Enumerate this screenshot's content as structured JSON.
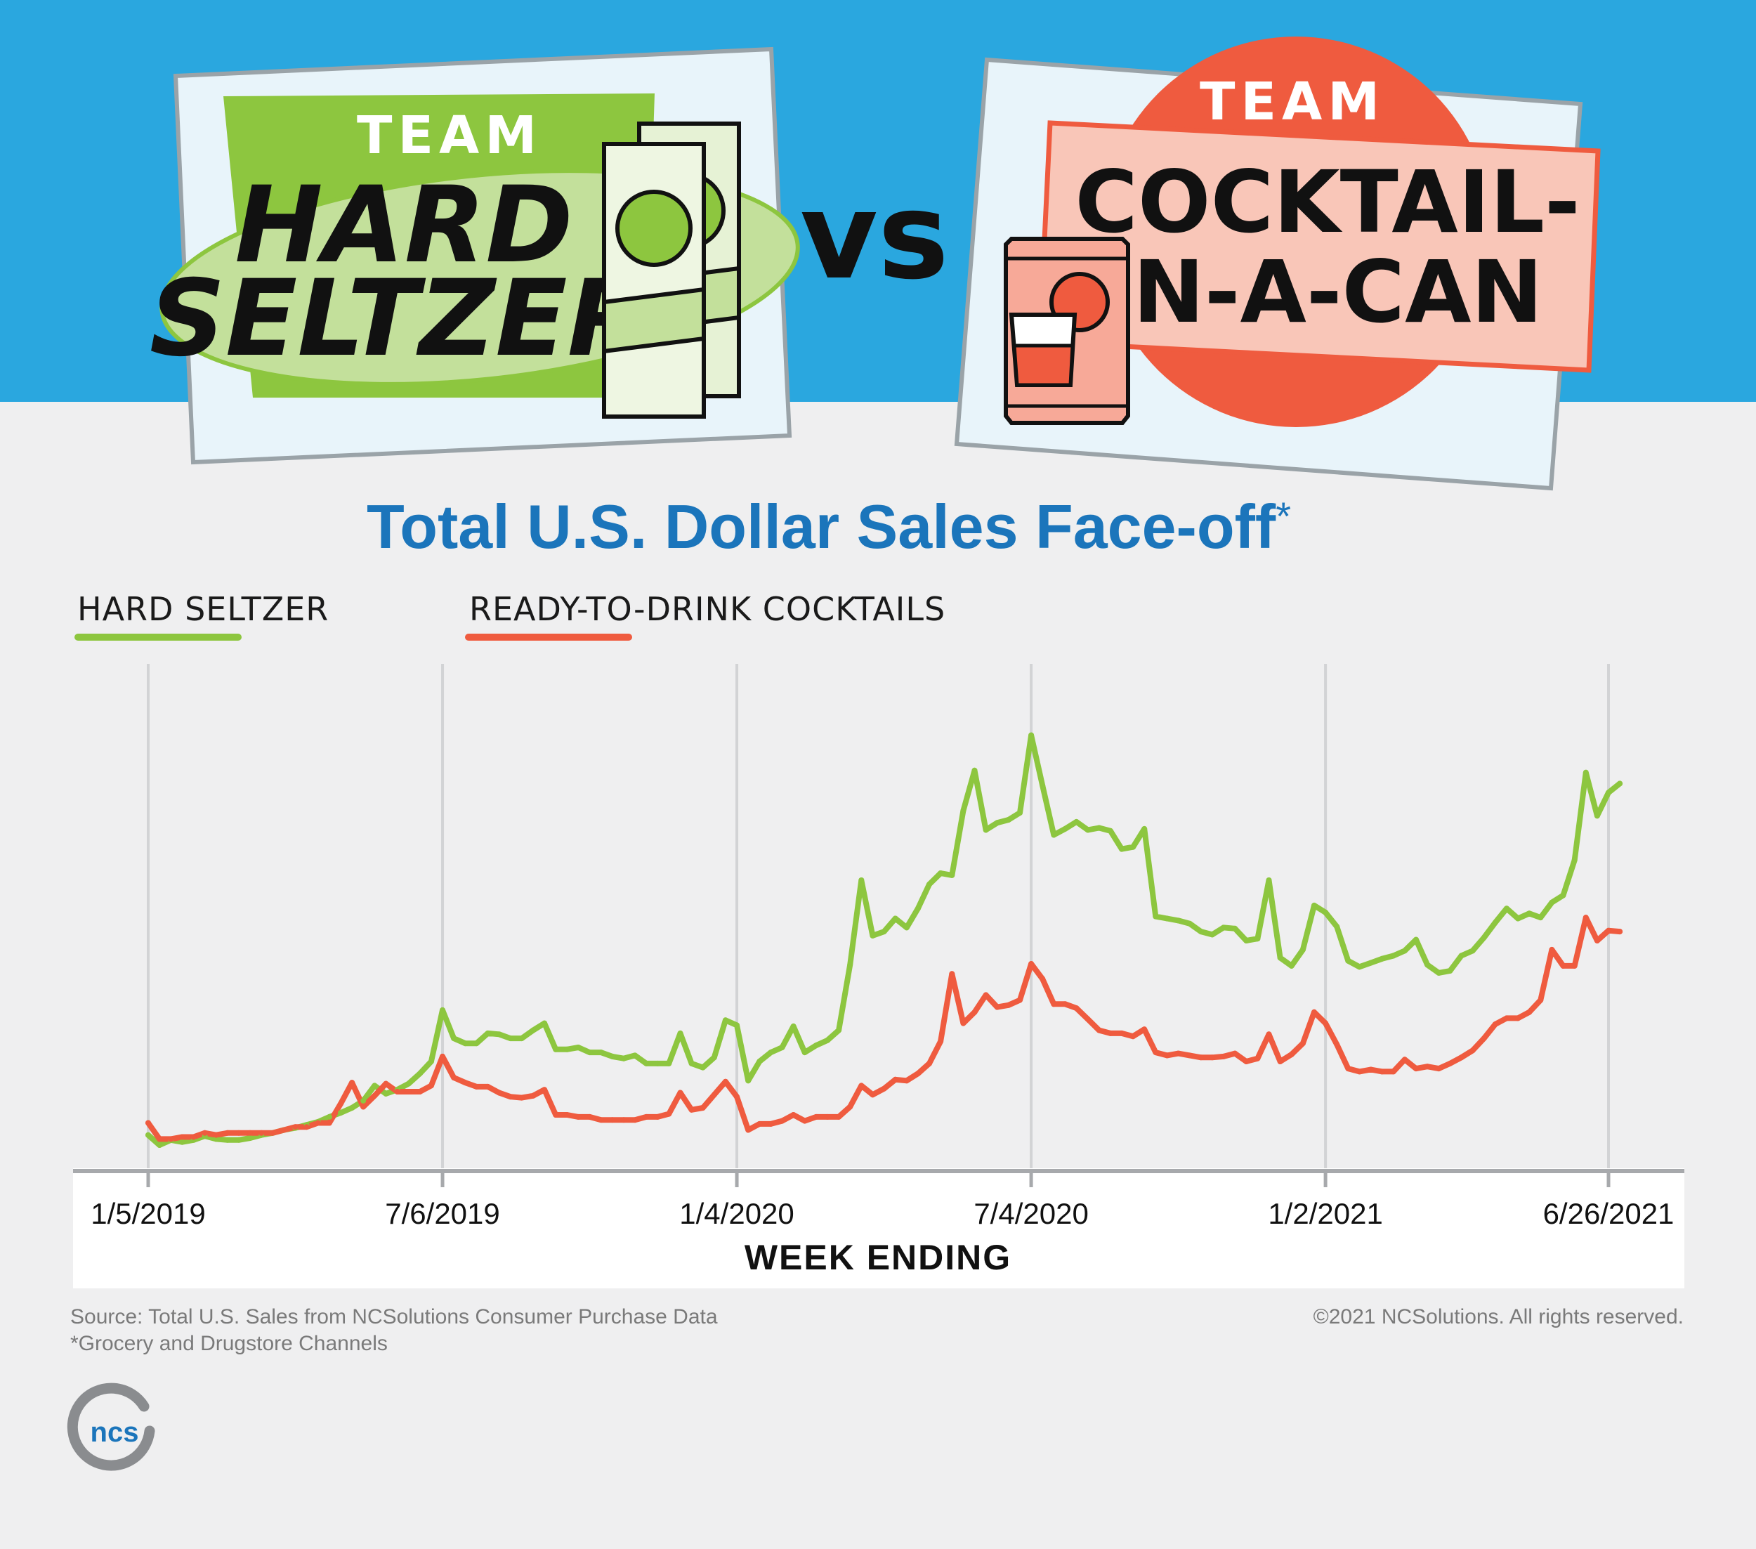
{
  "header": {
    "team_word": "TEAM",
    "left_team_line1": "HARD",
    "left_team_line2": "SELTZER",
    "versus": "VS",
    "right_team_line1": "COCKTAIL-",
    "right_team_line2": "IN-A-CAN"
  },
  "footer": {
    "source": "Source: Total U.S. Sales from NCSolutions Consumer Purchase Data",
    "note": "*Grocery and Drugstore Channels",
    "copyright": "©2021 NCSolutions. All rights reserved.",
    "logo_text": "ncs"
  },
  "colors": {
    "sky": "#2aa7df",
    "hard_seltzer": "#8dc63f",
    "cocktails": "#ef5b3f",
    "title": "#1b75bb"
  },
  "chart_data": {
    "type": "line",
    "title": "Total U.S. Dollar Sales Face-off",
    "title_mark": "*",
    "xlabel": "WEEK ENDING",
    "ylabel": "",
    "y_axis_shown": false,
    "grid": "vertical",
    "legend_position": "top-left",
    "x_ticks": [
      "1/5/2019",
      "7/6/2019",
      "1/4/2020",
      "7/4/2020",
      "1/2/2021",
      "6/26/2021"
    ],
    "x_range": [
      "1/5/2019",
      "6/26/2021"
    ],
    "ylim": [
      0,
      45
    ],
    "series": [
      {
        "name": "HARD SELTZER",
        "color": "#8dc63f",
        "points": [
          [
            "1/5/2019",
            1.0
          ],
          [
            "1/12/2019",
            0
          ],
          [
            "1/19/2019",
            0.5
          ],
          [
            "1/26/2019",
            0.3
          ],
          [
            "2/2/2019",
            0.5
          ],
          [
            "2/9/2019",
            0.9
          ],
          [
            "2/16/2019",
            0.6
          ],
          [
            "2/23/2019",
            0.5
          ],
          [
            "3/2/2019",
            0.5
          ],
          [
            "3/9/2019",
            0.7
          ],
          [
            "3/16/2019",
            1.0
          ],
          [
            "3/23/2019",
            1.2
          ],
          [
            "3/30/2019",
            1.5
          ],
          [
            "4/6/2019",
            1.7
          ],
          [
            "4/13/2019",
            2.0
          ],
          [
            "4/20/2019",
            2.3
          ],
          [
            "4/27/2019",
            2.8
          ],
          [
            "5/4/2019",
            3.2
          ],
          [
            "5/11/2019",
            3.7
          ],
          [
            "5/18/2019",
            4.4
          ],
          [
            "5/25/2019",
            5.9
          ],
          [
            "6/1/2019",
            5.1
          ],
          [
            "6/8/2019",
            5.5
          ],
          [
            "6/15/2019",
            6.1
          ],
          [
            "6/22/2019",
            7.1
          ],
          [
            "6/29/2019",
            8.3
          ],
          [
            "7/6/2019",
            13.4
          ],
          [
            "7/13/2019",
            10.6
          ],
          [
            "7/20/2019",
            10.1
          ],
          [
            "7/27/2019",
            10.1
          ],
          [
            "8/3/2019",
            11.1
          ],
          [
            "8/10/2019",
            11.0
          ],
          [
            "8/17/2019",
            10.6
          ],
          [
            "8/24/2019",
            10.6
          ],
          [
            "8/31/2019",
            11.4
          ],
          [
            "9/7/2019",
            12.1
          ],
          [
            "9/14/2019",
            9.5
          ],
          [
            "9/21/2019",
            9.5
          ],
          [
            "9/28/2019",
            9.7
          ],
          [
            "10/5/2019",
            9.2
          ],
          [
            "10/12/2019",
            9.2
          ],
          [
            "10/19/2019",
            8.8
          ],
          [
            "10/26/2019",
            8.6
          ],
          [
            "11/2/2019",
            8.9
          ],
          [
            "11/9/2019",
            8.1
          ],
          [
            "11/16/2019",
            8.1
          ],
          [
            "11/23/2019",
            8.1
          ],
          [
            "11/30/2019",
            11.1
          ],
          [
            "12/7/2019",
            8.1
          ],
          [
            "12/14/2019",
            7.7
          ],
          [
            "12/21/2019",
            8.7
          ],
          [
            "12/28/2019",
            12.4
          ],
          [
            "1/4/2020",
            11.9
          ],
          [
            "1/11/2020",
            6.4
          ],
          [
            "1/18/2020",
            8.3
          ],
          [
            "1/25/2020",
            9.2
          ],
          [
            "2/1/2020",
            9.7
          ],
          [
            "2/8/2020",
            11.8
          ],
          [
            "2/15/2020",
            9.2
          ],
          [
            "2/22/2020",
            9.9
          ],
          [
            "2/29/2020",
            10.4
          ],
          [
            "3/7/2020",
            11.4
          ],
          [
            "3/14/2020",
            17.9
          ],
          [
            "3/21/2020",
            26.3
          ],
          [
            "3/28/2020",
            20.8
          ],
          [
            "4/4/2020",
            21.2
          ],
          [
            "4/11/2020",
            22.5
          ],
          [
            "4/18/2020",
            21.6
          ],
          [
            "4/25/2020",
            23.5
          ],
          [
            "5/2/2020",
            25.9
          ],
          [
            "5/9/2020",
            27.0
          ],
          [
            "5/16/2020",
            26.8
          ],
          [
            "5/23/2020",
            33.2
          ],
          [
            "5/30/2020",
            37.2
          ],
          [
            "6/6/2020",
            31.3
          ],
          [
            "6/13/2020",
            32.0
          ],
          [
            "6/20/2020",
            32.3
          ],
          [
            "6/27/2020",
            33.0
          ],
          [
            "7/4/2020",
            40.7
          ],
          [
            "7/11/2020",
            35.7
          ],
          [
            "7/18/2020",
            30.8
          ],
          [
            "7/25/2020",
            31.4
          ],
          [
            "8/1/2020",
            32.1
          ],
          [
            "8/8/2020",
            31.3
          ],
          [
            "8/15/2020",
            31.5
          ],
          [
            "8/22/2020",
            31.2
          ],
          [
            "8/29/2020",
            29.4
          ],
          [
            "9/5/2020",
            29.6
          ],
          [
            "9/12/2020",
            31.4
          ],
          [
            "9/19/2020",
            22.7
          ],
          [
            "9/26/2020",
            22.5
          ],
          [
            "10/3/2020",
            22.3
          ],
          [
            "10/10/2020",
            22.0
          ],
          [
            "10/17/2020",
            21.2
          ],
          [
            "10/24/2020",
            20.9
          ],
          [
            "10/31/2020",
            21.6
          ],
          [
            "11/7/2020",
            21.5
          ],
          [
            "11/14/2020",
            20.3
          ],
          [
            "11/21/2020",
            20.5
          ],
          [
            "11/28/2020",
            26.3
          ],
          [
            "12/5/2020",
            18.6
          ],
          [
            "12/12/2020",
            17.8
          ],
          [
            "12/19/2020",
            19.4
          ],
          [
            "12/26/2020",
            23.8
          ],
          [
            "1/2/2021",
            23.1
          ],
          [
            "1/9/2021",
            21.7
          ],
          [
            "1/16/2021",
            18.3
          ],
          [
            "1/23/2021",
            17.7
          ],
          [
            "1/30/2021",
            18.1
          ],
          [
            "2/6/2021",
            18.5
          ],
          [
            "2/13/2021",
            18.8
          ],
          [
            "2/20/2021",
            19.3
          ],
          [
            "2/27/2021",
            20.4
          ],
          [
            "3/6/2021",
            17.9
          ],
          [
            "3/13/2021",
            17.1
          ],
          [
            "3/20/2021",
            17.3
          ],
          [
            "3/27/2021",
            18.8
          ],
          [
            "4/3/2021",
            19.3
          ],
          [
            "4/10/2021",
            20.6
          ],
          [
            "4/17/2021",
            22.1
          ],
          [
            "4/24/2021",
            23.5
          ],
          [
            "5/1/2021",
            22.5
          ],
          [
            "5/8/2021",
            23.0
          ],
          [
            "5/15/2021",
            22.6
          ],
          [
            "5/22/2021",
            24.1
          ],
          [
            "5/29/2021",
            24.8
          ],
          [
            "6/5/2021",
            28.3
          ],
          [
            "6/12/2021",
            37.0
          ],
          [
            "6/19/2021",
            32.7
          ],
          [
            "6/26/2021",
            35.0
          ],
          [
            "7/3/2021",
            35.9
          ]
        ]
      },
      {
        "name": "READY-TO-DRINK COCKTAILS",
        "color": "#ef5b3f",
        "points": [
          [
            "1/5/2019",
            2.2
          ],
          [
            "1/12/2019",
            0.6
          ],
          [
            "1/19/2019",
            0.6
          ],
          [
            "1/26/2019",
            0.8
          ],
          [
            "2/2/2019",
            0.8
          ],
          [
            "2/9/2019",
            1.2
          ],
          [
            "2/16/2019",
            1.0
          ],
          [
            "2/23/2019",
            1.2
          ],
          [
            "3/2/2019",
            1.2
          ],
          [
            "3/9/2019",
            1.2
          ],
          [
            "3/16/2019",
            1.2
          ],
          [
            "3/23/2019",
            1.2
          ],
          [
            "3/30/2019",
            1.5
          ],
          [
            "4/6/2019",
            1.8
          ],
          [
            "4/13/2019",
            1.8
          ],
          [
            "4/20/2019",
            2.2
          ],
          [
            "4/27/2019",
            2.2
          ],
          [
            "5/4/2019",
            4.1
          ],
          [
            "5/11/2019",
            6.2
          ],
          [
            "5/18/2019",
            3.8
          ],
          [
            "5/25/2019",
            4.9
          ],
          [
            "6/1/2019",
            6.1
          ],
          [
            "6/8/2019",
            5.3
          ],
          [
            "6/15/2019",
            5.3
          ],
          [
            "6/22/2019",
            5.3
          ],
          [
            "6/29/2019",
            5.9
          ],
          [
            "7/6/2019",
            8.8
          ],
          [
            "7/13/2019",
            6.7
          ],
          [
            "7/20/2019",
            6.2
          ],
          [
            "7/27/2019",
            5.8
          ],
          [
            "8/3/2019",
            5.8
          ],
          [
            "8/10/2019",
            5.2
          ],
          [
            "8/17/2019",
            4.8
          ],
          [
            "8/24/2019",
            4.7
          ],
          [
            "8/31/2019",
            4.9
          ],
          [
            "9/7/2019",
            5.5
          ],
          [
            "9/14/2019",
            3.0
          ],
          [
            "9/21/2019",
            3.0
          ],
          [
            "9/28/2019",
            2.8
          ],
          [
            "10/5/2019",
            2.8
          ],
          [
            "10/12/2019",
            2.5
          ],
          [
            "10/19/2019",
            2.5
          ],
          [
            "10/26/2019",
            2.5
          ],
          [
            "11/2/2019",
            2.5
          ],
          [
            "11/9/2019",
            2.8
          ],
          [
            "11/16/2019",
            2.8
          ],
          [
            "11/23/2019",
            3.1
          ],
          [
            "11/30/2019",
            5.2
          ],
          [
            "12/7/2019",
            3.5
          ],
          [
            "12/14/2019",
            3.7
          ],
          [
            "12/21/2019",
            5.0
          ],
          [
            "12/28/2019",
            6.3
          ],
          [
            "1/4/2020",
            4.8
          ],
          [
            "1/11/2020",
            1.5
          ],
          [
            "1/18/2020",
            2.1
          ],
          [
            "1/25/2020",
            2.1
          ],
          [
            "2/1/2020",
            2.4
          ],
          [
            "2/8/2020",
            3.0
          ],
          [
            "2/15/2020",
            2.4
          ],
          [
            "2/22/2020",
            2.8
          ],
          [
            "2/29/2020",
            2.8
          ],
          [
            "3/7/2020",
            2.8
          ],
          [
            "3/14/2020",
            3.8
          ],
          [
            "3/21/2020",
            5.9
          ],
          [
            "3/28/2020",
            5.0
          ],
          [
            "4/4/2020",
            5.6
          ],
          [
            "4/11/2020",
            6.5
          ],
          [
            "4/18/2020",
            6.4
          ],
          [
            "4/25/2020",
            7.1
          ],
          [
            "5/2/2020",
            8.1
          ],
          [
            "5/9/2020",
            10.3
          ],
          [
            "5/16/2020",
            17.0
          ],
          [
            "5/23/2020",
            12.1
          ],
          [
            "5/30/2020",
            13.2
          ],
          [
            "6/6/2020",
            14.9
          ],
          [
            "6/13/2020",
            13.7
          ],
          [
            "6/20/2020",
            13.9
          ],
          [
            "6/27/2020",
            14.4
          ],
          [
            "7/4/2020",
            18.0
          ],
          [
            "7/11/2020",
            16.5
          ],
          [
            "7/18/2020",
            14.0
          ],
          [
            "7/25/2020",
            14.0
          ],
          [
            "8/1/2020",
            13.6
          ],
          [
            "8/8/2020",
            12.5
          ],
          [
            "8/15/2020",
            11.4
          ],
          [
            "8/22/2020",
            11.1
          ],
          [
            "8/29/2020",
            11.1
          ],
          [
            "9/5/2020",
            10.8
          ],
          [
            "9/12/2020",
            11.5
          ],
          [
            "9/19/2020",
            9.2
          ],
          [
            "9/26/2020",
            8.9
          ],
          [
            "10/3/2020",
            9.1
          ],
          [
            "10/10/2020",
            8.9
          ],
          [
            "10/17/2020",
            8.7
          ],
          [
            "10/24/2020",
            8.7
          ],
          [
            "10/31/2020",
            8.8
          ],
          [
            "11/7/2020",
            9.1
          ],
          [
            "11/14/2020",
            8.3
          ],
          [
            "11/21/2020",
            8.6
          ],
          [
            "11/28/2020",
            11.0
          ],
          [
            "12/5/2020",
            8.3
          ],
          [
            "12/12/2020",
            9.0
          ],
          [
            "12/19/2020",
            10.1
          ],
          [
            "12/26/2020",
            13.2
          ],
          [
            "1/2/2021",
            12.1
          ],
          [
            "1/9/2021",
            10.0
          ],
          [
            "1/16/2021",
            7.6
          ],
          [
            "1/23/2021",
            7.3
          ],
          [
            "1/30/2021",
            7.5
          ],
          [
            "2/6/2021",
            7.3
          ],
          [
            "2/13/2021",
            7.3
          ],
          [
            "2/20/2021",
            8.5
          ],
          [
            "2/27/2021",
            7.6
          ],
          [
            "3/6/2021",
            7.8
          ],
          [
            "3/13/2021",
            7.6
          ],
          [
            "3/20/2021",
            8.1
          ],
          [
            "3/27/2021",
            8.7
          ],
          [
            "4/3/2021",
            9.4
          ],
          [
            "4/10/2021",
            10.6
          ],
          [
            "4/17/2021",
            12.0
          ],
          [
            "4/24/2021",
            12.6
          ],
          [
            "5/1/2021",
            12.6
          ],
          [
            "5/8/2021",
            13.2
          ],
          [
            "5/15/2021",
            14.4
          ],
          [
            "5/22/2021",
            19.4
          ],
          [
            "5/29/2021",
            17.8
          ],
          [
            "6/5/2021",
            17.8
          ],
          [
            "6/12/2021",
            22.6
          ],
          [
            "6/19/2021",
            20.3
          ],
          [
            "6/26/2021",
            21.3
          ],
          [
            "7/3/2021",
            21.2
          ]
        ]
      }
    ]
  }
}
